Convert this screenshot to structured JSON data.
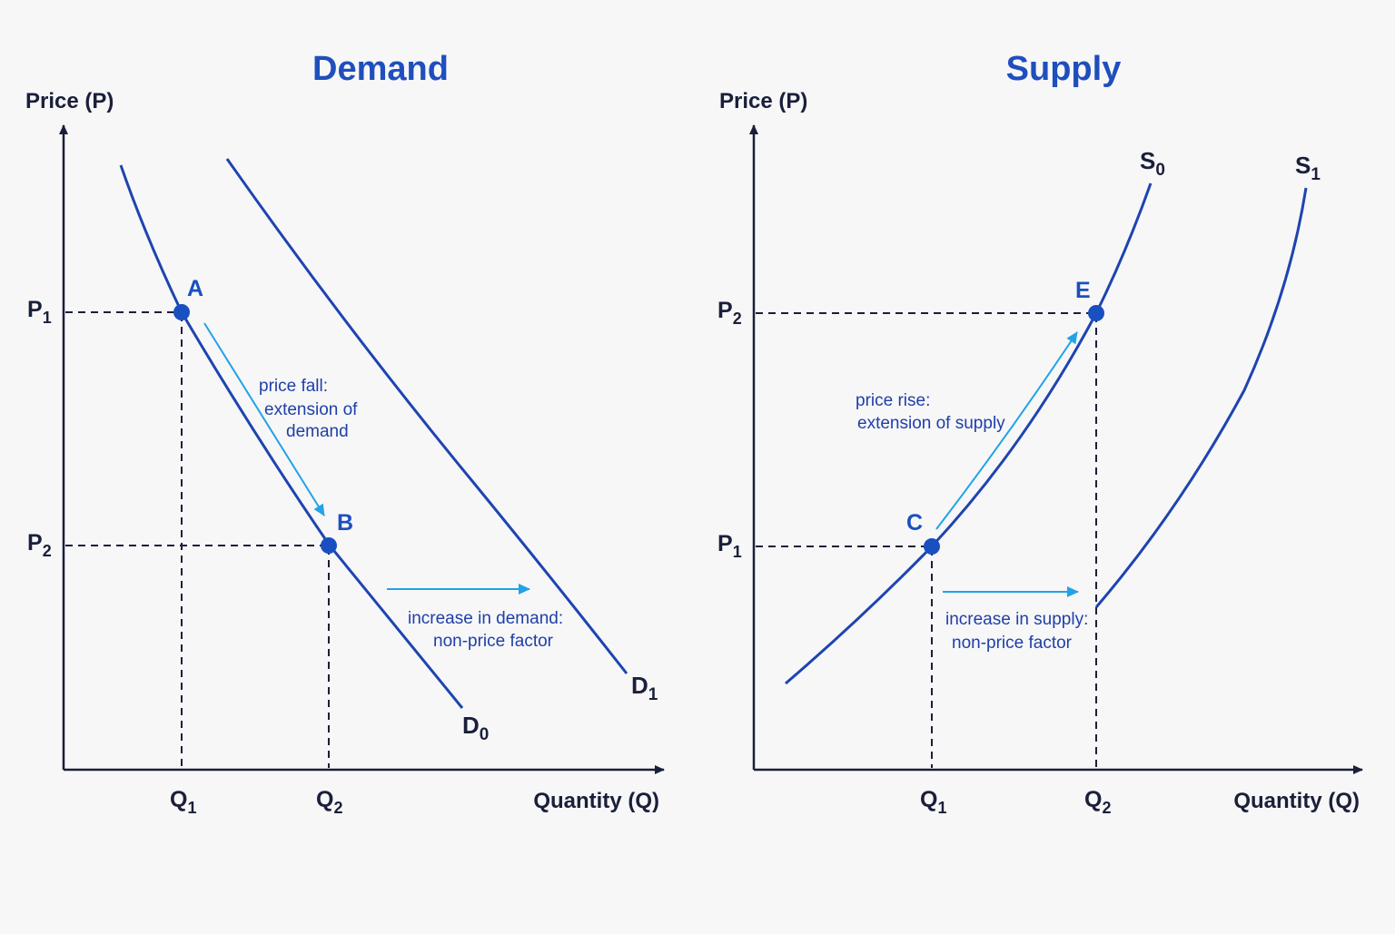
{
  "colors": {
    "curve": "#1e44b0",
    "point": "#1a4fc0",
    "title": "#1f4fbd",
    "arrow": "#22a3e6",
    "note": "#1f3fa8",
    "axis": "#1a1f3a",
    "background": "#f7f7f8"
  },
  "chart_data": [
    {
      "type": "line",
      "title": "Demand",
      "xlabel": "Quantity (Q)",
      "ylabel": "Price (P)",
      "x_ticks": [
        {
          "main": "Q",
          "sub": "1"
        },
        {
          "main": "Q",
          "sub": "2"
        }
      ],
      "y_ticks": [
        {
          "main": "P",
          "sub": "1"
        },
        {
          "main": "P",
          "sub": "2"
        }
      ],
      "series": [
        {
          "name": "D0",
          "label_main": "D",
          "label_sub": "0"
        },
        {
          "name": "D1",
          "label_main": "D",
          "label_sub": "1"
        }
      ],
      "points": [
        {
          "label": "A",
          "on": "D0",
          "at": "Q1, P1"
        },
        {
          "label": "B",
          "on": "D0",
          "at": "Q2, P2"
        }
      ],
      "annotations": [
        {
          "kind": "movement",
          "from": "A",
          "to": "B",
          "lines": [
            "price fall:",
            "extension of",
            "demand"
          ]
        },
        {
          "kind": "shift",
          "from": "D0",
          "to": "D1",
          "lines": [
            "increase in demand:",
            "non-price factor"
          ]
        }
      ],
      "grid": false
    },
    {
      "type": "line",
      "title": "Supply",
      "xlabel": "Quantity (Q)",
      "ylabel": "Price (P)",
      "x_ticks": [
        {
          "main": "Q",
          "sub": "1"
        },
        {
          "main": "Q",
          "sub": "2"
        }
      ],
      "y_ticks": [
        {
          "main": "P",
          "sub": "1"
        },
        {
          "main": "P",
          "sub": "2"
        }
      ],
      "series": [
        {
          "name": "S0",
          "label_main": "S",
          "label_sub": "0"
        },
        {
          "name": "S1",
          "label_main": "S",
          "label_sub": "1"
        }
      ],
      "points": [
        {
          "label": "C",
          "on": "S0",
          "at": "Q1, P1"
        },
        {
          "label": "E",
          "on": "S0",
          "at": "Q2, P2"
        }
      ],
      "annotations": [
        {
          "kind": "movement",
          "from": "C",
          "to": "E",
          "lines": [
            "price rise:",
            "extension of supply"
          ]
        },
        {
          "kind": "shift",
          "from": "S0",
          "to": "S1",
          "lines": [
            "increase in supply:",
            "non-price factor"
          ]
        }
      ],
      "grid": false
    }
  ]
}
